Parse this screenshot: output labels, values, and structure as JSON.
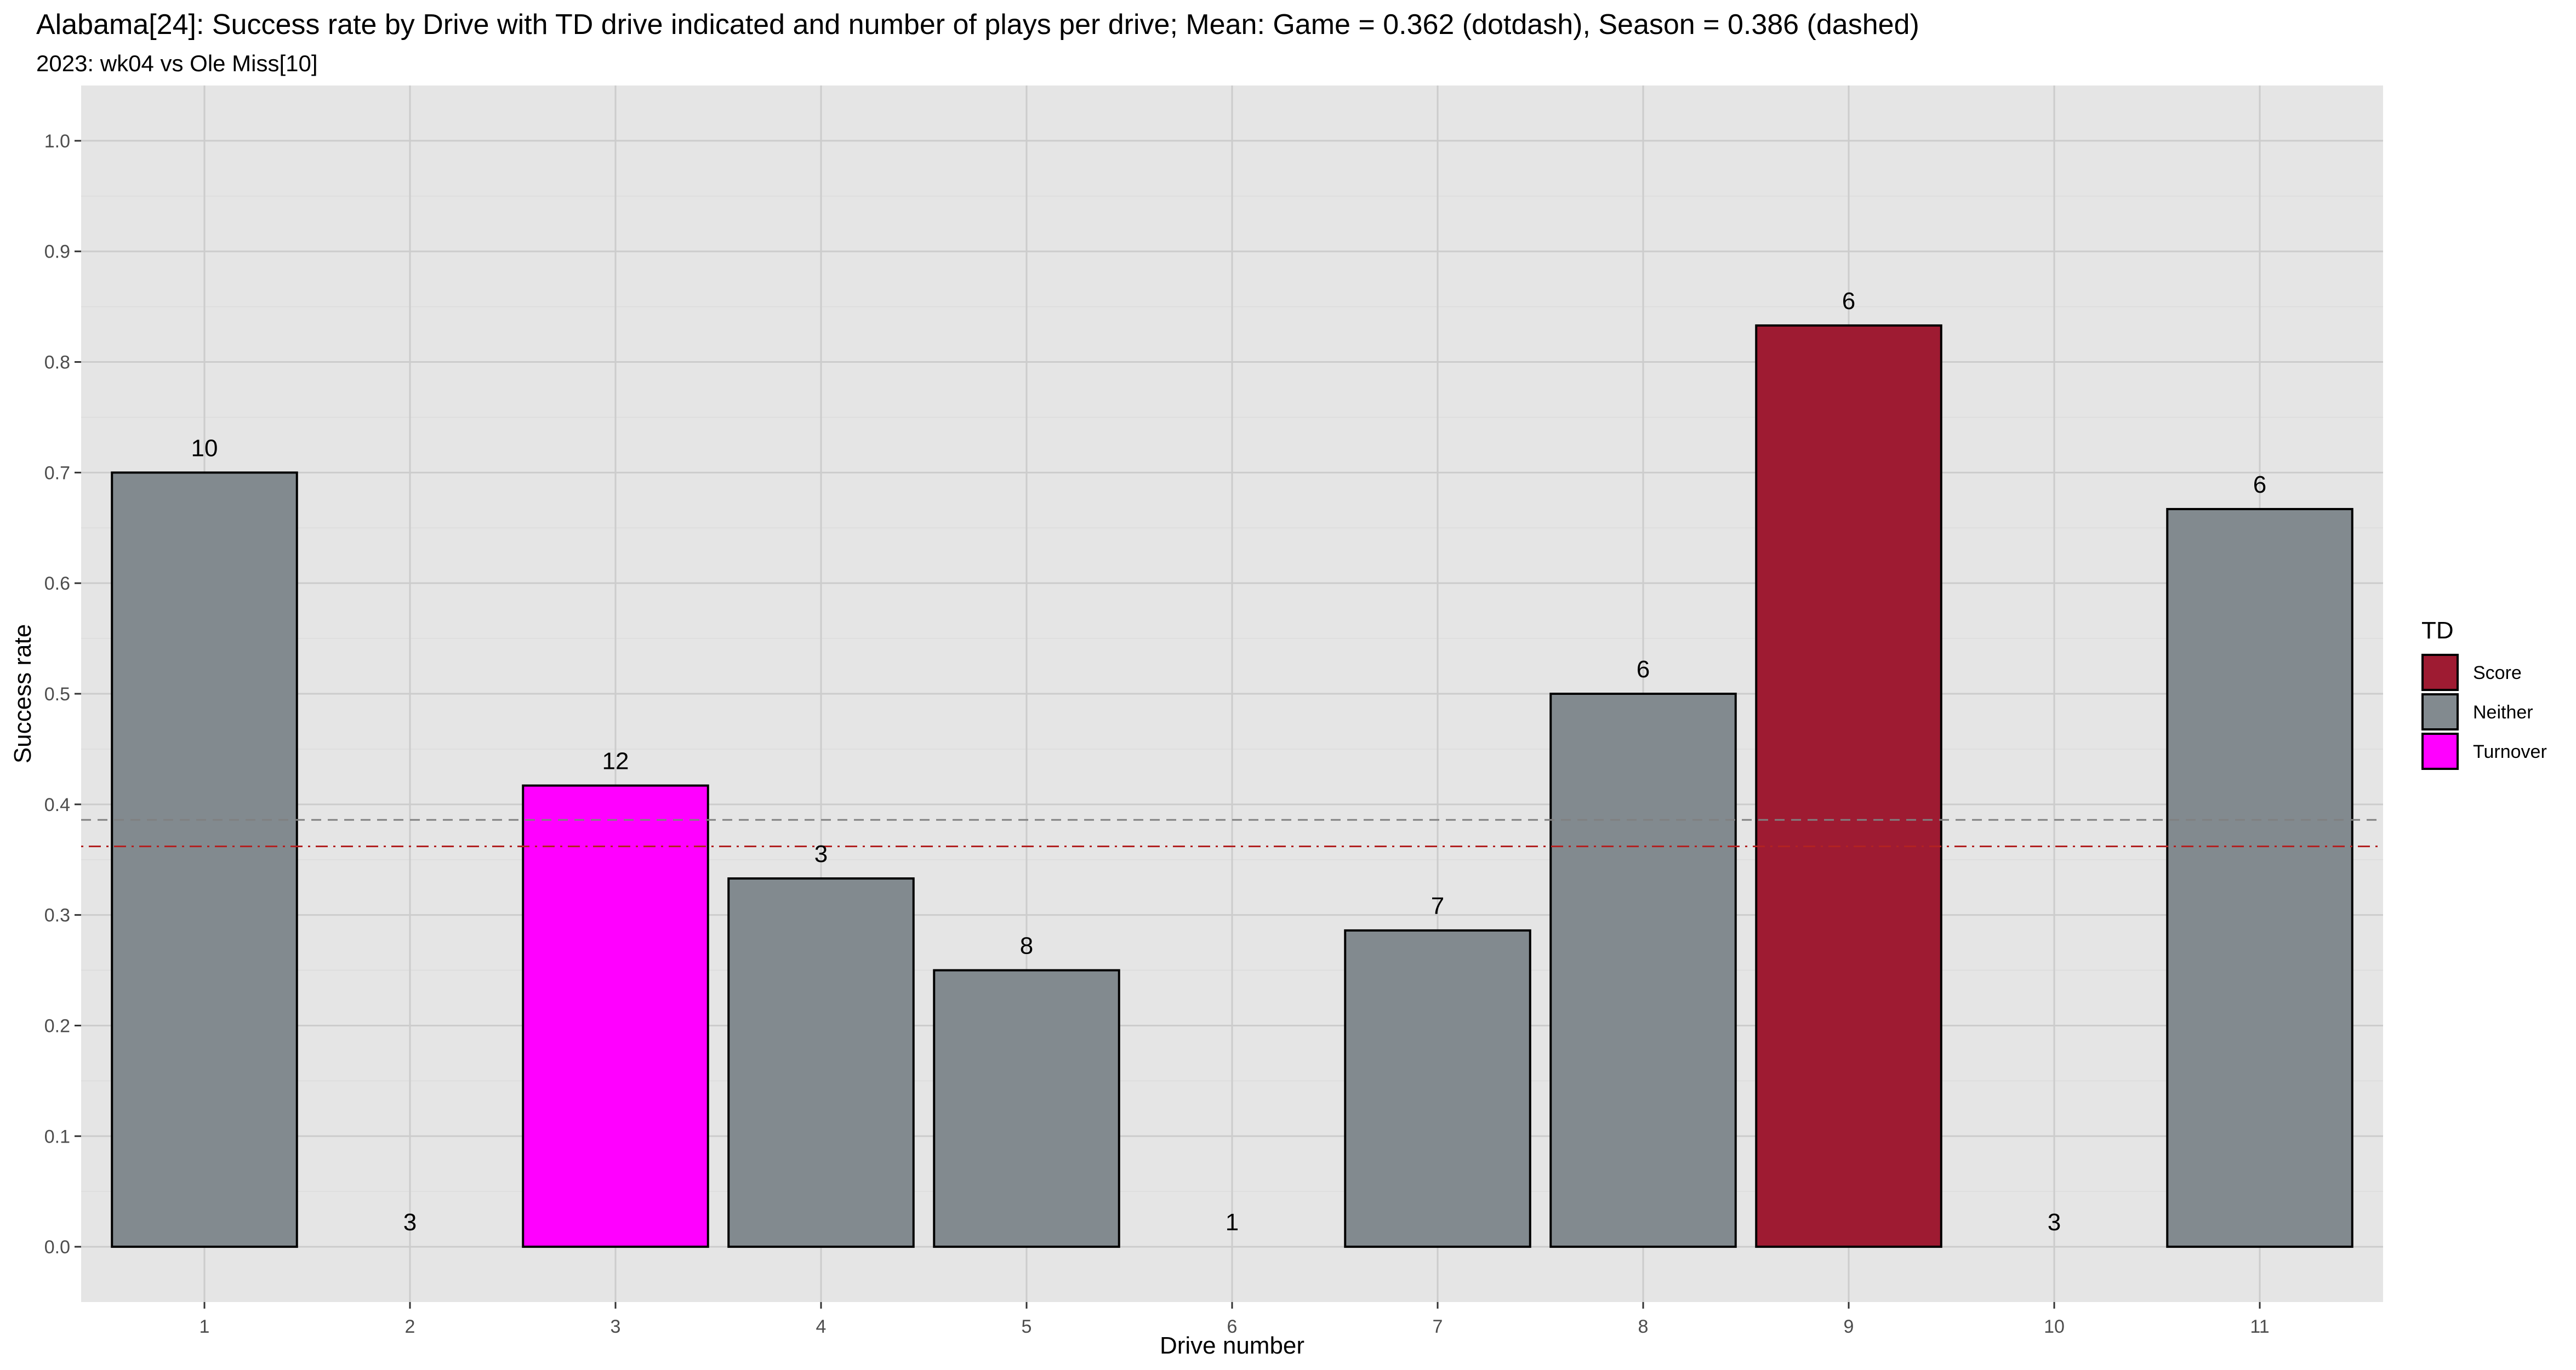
{
  "chart_data": {
    "type": "bar",
    "title": "Alabama[24]: Success rate by Drive with TD drive indicated and number of plays per drive; Mean: Game = 0.362 (dotdash), Season = 0.386 (dashed)",
    "subtitle": "2023: wk04 vs Ole Miss[10]",
    "xlabel": "Drive number",
    "ylabel": "Success rate",
    "ylim": [
      -0.05,
      1.05
    ],
    "y_ticks": [
      "0.0",
      "0.1",
      "0.2",
      "0.3",
      "0.4",
      "0.5",
      "0.6",
      "0.7",
      "0.8",
      "0.9",
      "1.0"
    ],
    "categories": [
      "1",
      "2",
      "3",
      "4",
      "5",
      "6",
      "7",
      "8",
      "9",
      "10",
      "11"
    ],
    "values": [
      0.7,
      0.0,
      0.417,
      0.333,
      0.25,
      0.0,
      0.286,
      0.5,
      0.833,
      0.0,
      0.667
    ],
    "plays": [
      "10",
      "3",
      "12",
      "3",
      "8",
      "1",
      "7",
      "6",
      "6",
      "3",
      "6"
    ],
    "td": [
      "Neither",
      "Neither",
      "Turnover",
      "Neither",
      "Neither",
      "Neither",
      "Neither",
      "Neither",
      "Score",
      "Neither",
      "Neither"
    ],
    "game_mean": 0.362,
    "season_mean": 0.386,
    "grid": true,
    "legend": {
      "title": "TD",
      "position": "right",
      "entries": [
        {
          "label": "Score",
          "color": "#9e1b32"
        },
        {
          "label": "Neither",
          "color": "#828a8f"
        },
        {
          "label": "Turnover",
          "color": "#ff00ff"
        }
      ]
    },
    "colors": {
      "panel": "#e5e5e5",
      "grid": "#cccccc",
      "game_mean_line": "#b22222",
      "season_mean_line": "#808080"
    }
  }
}
